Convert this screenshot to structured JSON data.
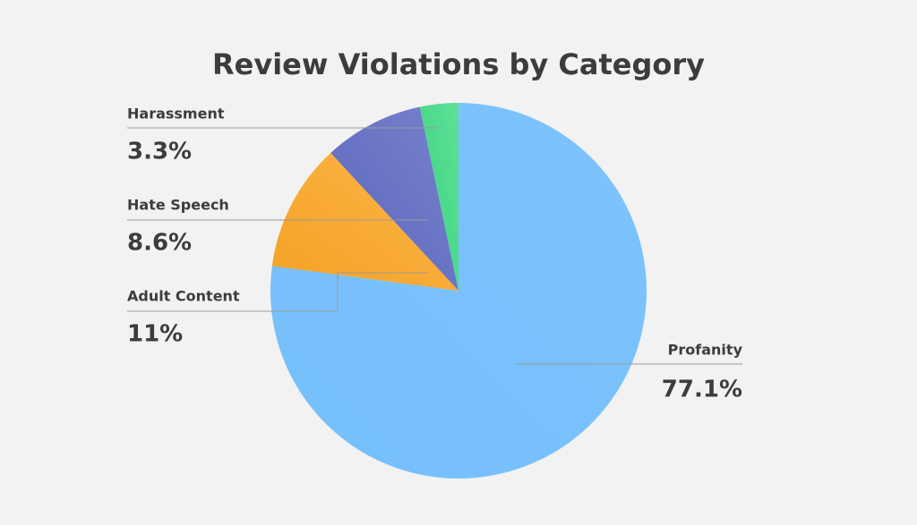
{
  "chart_data": {
    "type": "pie",
    "title": "Review Violations by Category",
    "categories": [
      "Profanity",
      "Adult Content",
      "Hate Speech",
      "Harassment"
    ],
    "values": [
      77.1,
      11,
      8.6,
      3.3
    ],
    "value_labels": [
      "77.1%",
      "11%",
      "8.6%",
      "3.3%"
    ],
    "colors": [
      "#66b8fb",
      "#ffa928",
      "#5f6cc4",
      "#3fdc86"
    ]
  }
}
